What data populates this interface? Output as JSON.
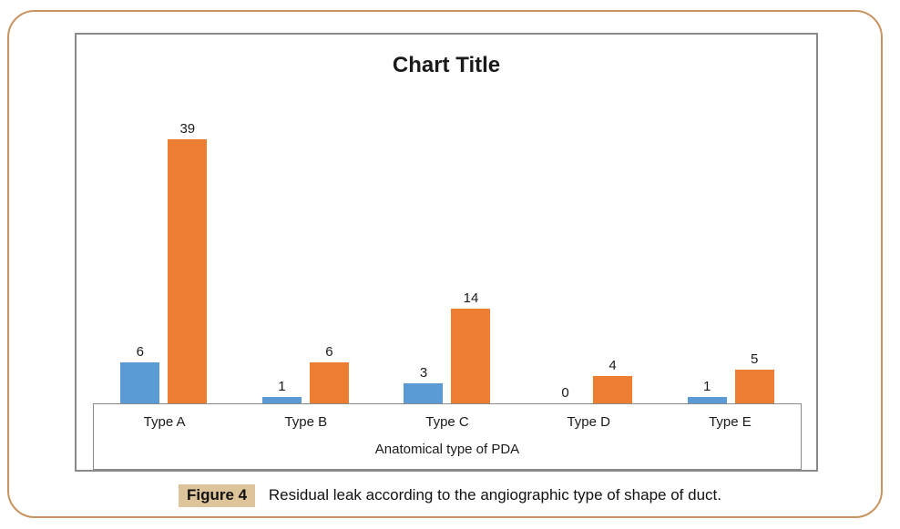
{
  "caption": {
    "figure_label": "Figure 4",
    "text": "Residual leak according to the angiographic type of shape of duct."
  },
  "colors": {
    "panel_border": "#c9935f",
    "chart_border": "#898989",
    "axis_border": "#8a8a8a",
    "figure_label_bg": "#ddc49a",
    "series_blue": "#5B9BD5",
    "series_orange": "#ED7D31"
  },
  "chart_data": {
    "type": "bar",
    "title": "Chart Title",
    "categories": [
      "Type A",
      "Type B",
      "Type C",
      "Type D",
      "Type E"
    ],
    "series": [
      {
        "color": "#5B9BD5",
        "values": [
          6,
          1,
          3,
          0,
          1
        ]
      },
      {
        "color": "#ED7D31",
        "values": [
          39,
          6,
          14,
          4,
          5
        ]
      }
    ],
    "xlabel": "Anatomical type of PDA",
    "ylabel": "",
    "ylim": [
      0,
      40
    ],
    "data_labels": true,
    "legend": "none",
    "grid": false
  }
}
